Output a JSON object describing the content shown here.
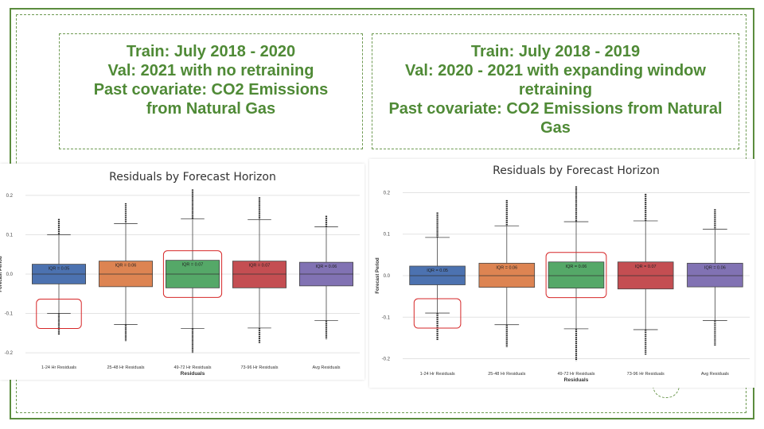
{
  "colors": {
    "frame": "#5b8c3e",
    "title_text": "#4f8a36",
    "highlight": "#d62728",
    "box_1_24": "#4c72b0",
    "box_25_48": "#dd8452",
    "box_49_72": "#55a868",
    "box_73_96": "#c44e52",
    "box_avg": "#8172b3"
  },
  "left": {
    "title_lines": [
      "Train: July 2018 - 2020",
      "Val: 2021 with no retraining",
      "Past covariate: CO2 Emissions from Natural Gas"
    ]
  },
  "right": {
    "title_lines": [
      "Train: July 2018 - 2019",
      "Val: 2020 - 2021 with expanding window retraining",
      "Past covariate: CO2 Emissions from Natural Gas"
    ]
  },
  "chart_data": [
    {
      "type": "box",
      "title": "Residuals by Forecast Horizon",
      "xlabel": "Residuals",
      "ylabel": "Forecast Period",
      "ylim": [
        -0.22,
        0.22
      ],
      "yticks": [
        -0.2,
        -0.1,
        0.0,
        0.1,
        0.2
      ],
      "ytick_labels": [
        "-0.2",
        "-0.1",
        "0.0",
        "0.1",
        "0.2"
      ],
      "grid": true,
      "categories": [
        "1-24 Hr Residuals",
        "25-48 Hr Residuals",
        "49-72 Hr Residuals",
        "73-96 Hr Residuals",
        "Avg Residuals"
      ],
      "boxes": [
        {
          "q1": -0.025,
          "median": 0.0,
          "q3": 0.025,
          "whisker_low": -0.1,
          "whisker_high": 0.1,
          "outlier_low": -0.155,
          "outlier_high": 0.14,
          "label": "IQR = 0.05"
        },
        {
          "q1": -0.032,
          "median": 0.0,
          "q3": 0.033,
          "whisker_low": -0.128,
          "whisker_high": 0.128,
          "outlier_low": -0.17,
          "outlier_high": 0.18,
          "label": "IQR = 0.06"
        },
        {
          "q1": -0.035,
          "median": 0.0,
          "q3": 0.035,
          "whisker_low": -0.138,
          "whisker_high": 0.14,
          "outlier_low": -0.2,
          "outlier_high": 0.215,
          "label": "IQR = 0.07"
        },
        {
          "q1": -0.035,
          "median": 0.0,
          "q3": 0.033,
          "whisker_low": -0.137,
          "whisker_high": 0.138,
          "outlier_low": -0.175,
          "outlier_high": 0.195,
          "label": "IQR = 0.07"
        },
        {
          "q1": -0.03,
          "median": 0.0,
          "q3": 0.03,
          "whisker_low": -0.118,
          "whisker_high": 0.12,
          "outlier_low": -0.165,
          "outlier_high": 0.148,
          "label": "IQR = 0.06"
        }
      ],
      "highlighted": [
        "1-24 Hr Residuals lower whisker",
        "49-72 Hr Residuals box"
      ]
    },
    {
      "type": "box",
      "title": "Residuals by Forecast Horizon",
      "xlabel": "Residuals",
      "ylabel": "Forecast Period",
      "ylim": [
        -0.22,
        0.22
      ],
      "yticks": [
        -0.2,
        -0.1,
        0.0,
        0.1,
        0.2
      ],
      "ytick_labels": [
        "-0.2",
        "-0.1",
        "0.0",
        "0.1",
        "0.2"
      ],
      "grid": true,
      "categories": [
        "1-24 Hr Residuals",
        "25-48 Hr Residuals",
        "49-72 Hr Residuals",
        "73-96 Hr Residuals",
        "Avg Residuals"
      ],
      "boxes": [
        {
          "q1": -0.022,
          "median": 0.0,
          "q3": 0.023,
          "whisker_low": -0.09,
          "whisker_high": 0.092,
          "outlier_low": -0.155,
          "outlier_high": 0.152,
          "label": "IQR = 0.05"
        },
        {
          "q1": -0.028,
          "median": 0.0,
          "q3": 0.03,
          "whisker_low": -0.118,
          "whisker_high": 0.12,
          "outlier_low": -0.172,
          "outlier_high": 0.182,
          "label": "IQR = 0.06"
        },
        {
          "q1": -0.03,
          "median": 0.0,
          "q3": 0.033,
          "whisker_low": -0.128,
          "whisker_high": 0.13,
          "outlier_low": -0.205,
          "outlier_high": 0.215,
          "label": "IQR = 0.06"
        },
        {
          "q1": -0.032,
          "median": 0.0,
          "q3": 0.033,
          "whisker_low": -0.13,
          "whisker_high": 0.132,
          "outlier_low": -0.19,
          "outlier_high": 0.197,
          "label": "IQR = 0.07"
        },
        {
          "q1": -0.027,
          "median": 0.0,
          "q3": 0.03,
          "whisker_low": -0.108,
          "whisker_high": 0.112,
          "outlier_low": -0.168,
          "outlier_high": 0.16,
          "label": "IQR = 0.06"
        }
      ],
      "highlighted": [
        "1-24 Hr Residuals lower whisker",
        "49-72 Hr Residuals box"
      ]
    }
  ]
}
